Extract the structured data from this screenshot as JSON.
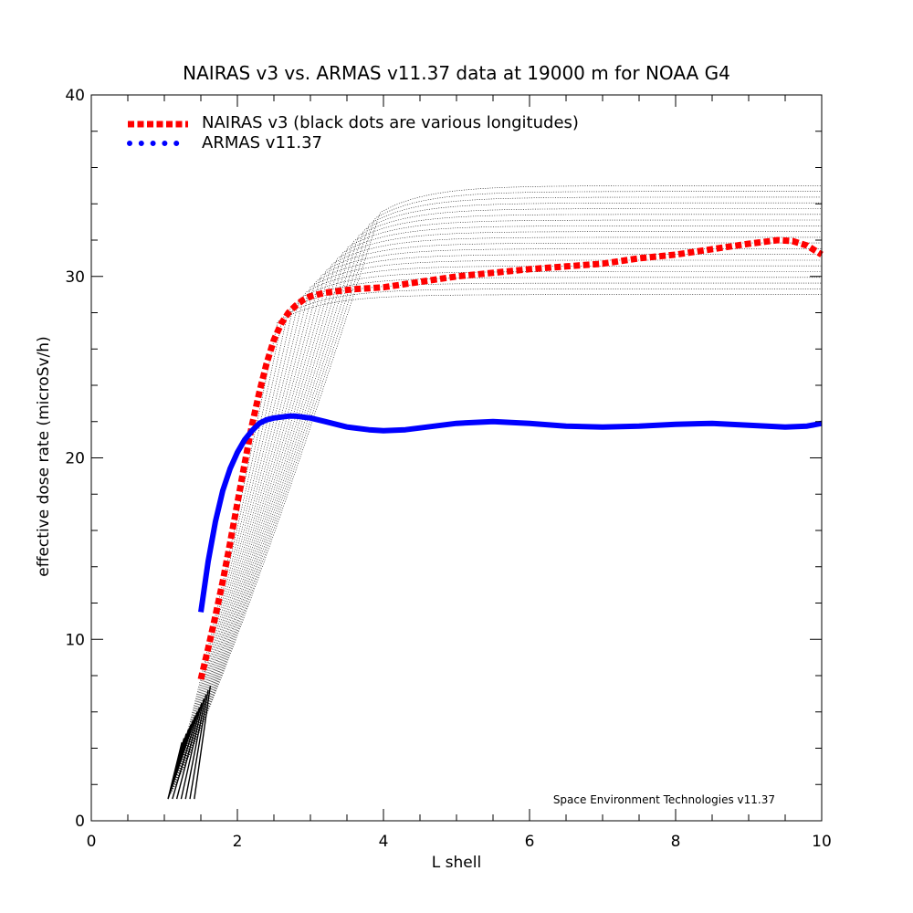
{
  "chart_data": {
    "type": "line",
    "title": "NAIRAS  v3 vs. ARMAS v11.37 data at 19000 m for NOAA G4",
    "xlabel": "L shell",
    "ylabel": "effective dose rate (microSv/h)",
    "xlim": [
      0,
      10
    ],
    "ylim": [
      0,
      40
    ],
    "xticks": [
      0,
      2,
      4,
      6,
      8,
      10
    ],
    "yticks": [
      0,
      10,
      20,
      30,
      40
    ],
    "grid": false,
    "legend_position": "top-left",
    "credit": "Space Environment Technologies v11.37",
    "series": [
      {
        "name": "NAIRAS v3 (black dots are various longitudes)",
        "color": "#ff0000",
        "style": "dotted",
        "x": [
          1.5,
          1.6,
          1.7,
          1.8,
          1.9,
          2.0,
          2.1,
          2.2,
          2.3,
          2.4,
          2.5,
          2.6,
          2.7,
          2.8,
          2.9,
          3.0,
          3.2,
          3.4,
          3.6,
          3.8,
          4.0,
          4.5,
          5.0,
          5.5,
          6.0,
          6.5,
          7.0,
          7.5,
          8.0,
          8.5,
          9.0,
          9.4,
          9.6,
          9.8,
          10.0
        ],
        "values": [
          7.8,
          9.5,
          11.3,
          13.2,
          15.3,
          17.5,
          19.7,
          21.8,
          23.6,
          25.2,
          26.5,
          27.4,
          28.0,
          28.4,
          28.7,
          28.9,
          29.1,
          29.2,
          29.3,
          29.35,
          29.4,
          29.7,
          30.0,
          30.2,
          30.4,
          30.55,
          30.7,
          31.0,
          31.2,
          31.5,
          31.8,
          32.0,
          31.95,
          31.7,
          31.2
        ]
      },
      {
        "name": "ARMAS v11.37",
        "color": "#0000ff",
        "style": "solid",
        "x": [
          1.5,
          1.6,
          1.7,
          1.8,
          1.9,
          2.0,
          2.1,
          2.2,
          2.3,
          2.4,
          2.5,
          2.6,
          2.7,
          2.8,
          3.0,
          3.2,
          3.5,
          3.8,
          4.0,
          4.3,
          4.6,
          5.0,
          5.5,
          6.0,
          6.5,
          7.0,
          7.5,
          8.0,
          8.5,
          9.0,
          9.5,
          9.8,
          10.0
        ],
        "values": [
          11.5,
          14.3,
          16.5,
          18.2,
          19.4,
          20.3,
          21.0,
          21.5,
          21.9,
          22.1,
          22.2,
          22.25,
          22.3,
          22.3,
          22.2,
          22.0,
          21.7,
          21.55,
          21.5,
          21.55,
          21.7,
          21.9,
          22.0,
          21.9,
          21.75,
          21.7,
          21.75,
          21.85,
          21.9,
          21.8,
          21.7,
          21.75,
          21.9
        ]
      }
    ]
  }
}
